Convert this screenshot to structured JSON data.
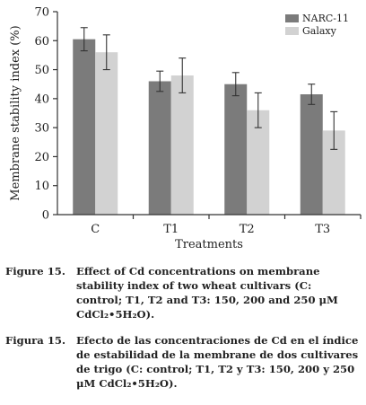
{
  "chart_data": {
    "type": "bar",
    "categories": [
      "C",
      "T1",
      "T2",
      "T3"
    ],
    "series": [
      {
        "name": "NARC-11",
        "values": [
          60.5,
          46,
          45,
          41.5
        ],
        "errors": [
          4,
          3.5,
          4,
          3.5
        ],
        "color": "#7b7b7b"
      },
      {
        "name": "Galaxy",
        "values": [
          56,
          48,
          36,
          29
        ],
        "errors": [
          6,
          6,
          6,
          6.5
        ],
        "color": "#d2d2d2"
      }
    ],
    "xlabel": "Treatments",
    "ylabel": "Membrane stability index (%)",
    "ylim": [
      0,
      70
    ],
    "yticks": [
      "0",
      "10",
      "20",
      "30",
      "40",
      "50",
      "60",
      "70"
    ],
    "legend_position": "top-right",
    "grid": false
  },
  "caption_en": {
    "label": "Figure 15.",
    "line1": "Effect of Cd concentrations on membrane",
    "line2": "stability index of two wheat cultivars (C:",
    "line3": "control; T1, T2 and T3: 150, 200 and 250 μM",
    "line4": "CdCl₂•5H₂O)."
  },
  "caption_es": {
    "label": "Figura 15.",
    "line1": "Efecto de las concentraciones de Cd en el índice",
    "line2": "de estabilidad de la membrane de dos cultivares",
    "line3": "de trigo (C: control; T1, T2 y T3: 150, 200 y 250",
    "line4": "μM CdCl₂•5H₂O)."
  }
}
